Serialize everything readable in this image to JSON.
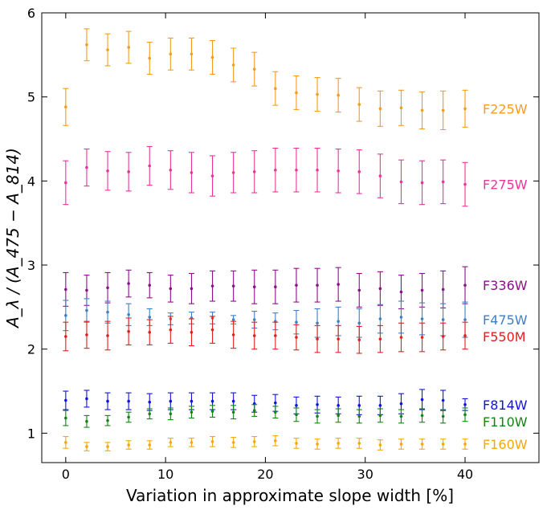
{
  "chart_data": {
    "type": "scatter",
    "title": "",
    "xlabel": "Variation in approximate slope width [%]",
    "ylabel": "A_λ / (A_475 − A_814)",
    "xlim": [
      -2.4,
      47.4
    ],
    "ylim": [
      0.65,
      6.0
    ],
    "x_ticks": [
      "0",
      "10",
      "20",
      "30",
      "40"
    ],
    "y_ticks": [
      "1",
      "2",
      "3",
      "4",
      "5",
      "6"
    ],
    "x": [
      0,
      2.1,
      4.2,
      6.3,
      8.4,
      10.5,
      12.6,
      14.7,
      16.8,
      18.9,
      21.0,
      23.1,
      25.2,
      27.3,
      29.4,
      31.5,
      33.6,
      35.7,
      37.8,
      40.0
    ],
    "series": [
      {
        "name": "F225W",
        "color": "#f39c1e",
        "values": [
          4.88,
          5.62,
          5.56,
          5.59,
          5.46,
          5.51,
          5.51,
          5.47,
          5.38,
          5.33,
          5.1,
          5.05,
          5.03,
          5.02,
          4.91,
          4.86,
          4.87,
          4.84,
          4.84,
          4.86
        ],
        "errors": [
          0.22,
          0.19,
          0.19,
          0.19,
          0.19,
          0.19,
          0.19,
          0.2,
          0.2,
          0.2,
          0.2,
          0.2,
          0.2,
          0.2,
          0.2,
          0.21,
          0.21,
          0.22,
          0.23,
          0.22
        ]
      },
      {
        "name": "F275W",
        "color": "#e9359a",
        "values": [
          3.98,
          4.16,
          4.12,
          4.11,
          4.18,
          4.13,
          4.1,
          4.06,
          4.1,
          4.11,
          4.13,
          4.13,
          4.13,
          4.12,
          4.11,
          4.06,
          3.99,
          3.98,
          3.99,
          3.96
        ],
        "errors": [
          0.26,
          0.22,
          0.23,
          0.23,
          0.23,
          0.23,
          0.24,
          0.24,
          0.24,
          0.25,
          0.26,
          0.26,
          0.26,
          0.26,
          0.26,
          0.26,
          0.26,
          0.26,
          0.26,
          0.26
        ]
      },
      {
        "name": "F336W",
        "color": "#8c1089",
        "values": [
          2.71,
          2.7,
          2.73,
          2.78,
          2.76,
          2.72,
          2.72,
          2.75,
          2.75,
          2.74,
          2.74,
          2.76,
          2.76,
          2.77,
          2.7,
          2.72,
          2.68,
          2.7,
          2.71,
          2.76
        ],
        "errors": [
          0.2,
          0.18,
          0.18,
          0.16,
          0.15,
          0.16,
          0.18,
          0.18,
          0.18,
          0.2,
          0.2,
          0.2,
          0.2,
          0.2,
          0.2,
          0.2,
          0.2,
          0.2,
          0.22,
          0.22
        ]
      },
      {
        "name": "F475W",
        "color": "#3f7fc4",
        "values": [
          2.4,
          2.46,
          2.44,
          2.41,
          2.38,
          2.36,
          2.37,
          2.37,
          2.35,
          2.35,
          2.33,
          2.32,
          2.31,
          2.33,
          2.31,
          2.36,
          2.38,
          2.36,
          2.35,
          2.35
        ],
        "errors": [
          0.18,
          0.14,
          0.13,
          0.13,
          0.1,
          0.07,
          0.07,
          0.07,
          0.05,
          0.1,
          0.1,
          0.14,
          0.17,
          0.17,
          0.17,
          0.17,
          0.19,
          0.19,
          0.19,
          0.21
        ]
      },
      {
        "name": "F550M",
        "color": "#e21f1f",
        "values": [
          2.15,
          2.17,
          2.16,
          2.21,
          2.2,
          2.23,
          2.2,
          2.23,
          2.17,
          2.16,
          2.16,
          2.14,
          2.12,
          2.12,
          2.11,
          2.12,
          2.14,
          2.14,
          2.15,
          2.16
        ],
        "errors": [
          0.17,
          0.16,
          0.17,
          0.16,
          0.15,
          0.16,
          0.16,
          0.16,
          0.16,
          0.16,
          0.16,
          0.15,
          0.16,
          0.16,
          0.16,
          0.16,
          0.17,
          0.17,
          0.16,
          0.16
        ]
      },
      {
        "name": "F814W",
        "color": "#1212e0",
        "values": [
          1.39,
          1.41,
          1.38,
          1.38,
          1.37,
          1.38,
          1.38,
          1.38,
          1.38,
          1.35,
          1.36,
          1.33,
          1.34,
          1.33,
          1.33,
          1.33,
          1.35,
          1.4,
          1.39,
          1.34
        ],
        "errors": [
          0.11,
          0.1,
          0.1,
          0.1,
          0.1,
          0.1,
          0.1,
          0.1,
          0.1,
          0.1,
          0.1,
          0.1,
          0.1,
          0.1,
          0.11,
          0.11,
          0.12,
          0.12,
          0.12,
          0.07
        ]
      },
      {
        "name": "F110W",
        "color": "#128512",
        "values": [
          1.18,
          1.14,
          1.15,
          1.19,
          1.23,
          1.23,
          1.25,
          1.26,
          1.25,
          1.27,
          1.25,
          1.22,
          1.2,
          1.21,
          1.2,
          1.21,
          1.2,
          1.21,
          1.2,
          1.22
        ],
        "errors": [
          0.09,
          0.07,
          0.06,
          0.06,
          0.06,
          0.07,
          0.07,
          0.07,
          0.08,
          0.07,
          0.07,
          0.08,
          0.08,
          0.08,
          0.08,
          0.08,
          0.08,
          0.08,
          0.08,
          0.08
        ]
      },
      {
        "name": "F160W",
        "color": "#f5a80a",
        "values": [
          0.89,
          0.84,
          0.84,
          0.86,
          0.86,
          0.89,
          0.89,
          0.9,
          0.89,
          0.9,
          0.91,
          0.88,
          0.87,
          0.88,
          0.88,
          0.86,
          0.87,
          0.87,
          0.87,
          0.87
        ],
        "errors": [
          0.07,
          0.05,
          0.05,
          0.05,
          0.05,
          0.05,
          0.05,
          0.06,
          0.06,
          0.06,
          0.06,
          0.06,
          0.06,
          0.06,
          0.06,
          0.06,
          0.06,
          0.06,
          0.06,
          0.06
        ]
      }
    ]
  }
}
